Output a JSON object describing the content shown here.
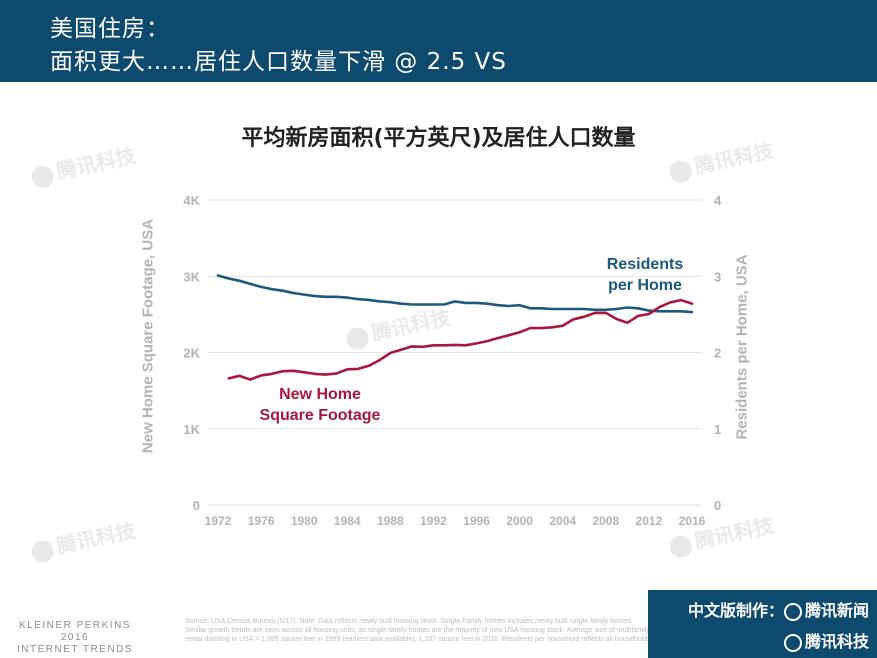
{
  "header": {
    "line1": "美国住房：",
    "line2": "面积更大……居住人口数量下滑 @ 2.5 VS"
  },
  "chart_data": {
    "type": "line",
    "title": "平均新房面积(平方英尺)及居住人口数量",
    "x_ticks": [
      "1972",
      "1976",
      "1980",
      "1984",
      "1988",
      "1992",
      "1996",
      "2000",
      "2004",
      "2008",
      "2012",
      "2016"
    ],
    "xlim": [
      1972,
      2016
    ],
    "left_axis": {
      "label": "New Home Square Footage, USA",
      "ticks": [
        "0",
        "1K",
        "2K",
        "3K",
        "4K"
      ],
      "ylim": [
        0,
        4000
      ]
    },
    "right_axis": {
      "label": "Residents per Home, USA",
      "ticks": [
        "0",
        "1",
        "2",
        "3",
        "4"
      ],
      "ylim": [
        0,
        4
      ]
    },
    "grid": "horizontal",
    "series": [
      {
        "name": "Residents per Home",
        "axis": "right",
        "color": "#1b5a7c",
        "x": [
          1972,
          1973,
          1974,
          1975,
          1976,
          1977,
          1978,
          1979,
          1980,
          1981,
          1982,
          1983,
          1984,
          1985,
          1986,
          1987,
          1988,
          1989,
          1990,
          1991,
          1992,
          1993,
          1994,
          1995,
          1996,
          1997,
          1998,
          1999,
          2000,
          2001,
          2002,
          2003,
          2004,
          2005,
          2006,
          2007,
          2008,
          2009,
          2010,
          2011,
          2012,
          2013,
          2014,
          2015,
          2016
        ],
        "values": [
          3.01,
          2.97,
          2.94,
          2.9,
          2.86,
          2.83,
          2.81,
          2.78,
          2.76,
          2.74,
          2.73,
          2.73,
          2.72,
          2.7,
          2.69,
          2.67,
          2.66,
          2.64,
          2.63,
          2.63,
          2.63,
          2.63,
          2.67,
          2.65,
          2.65,
          2.64,
          2.62,
          2.61,
          2.62,
          2.58,
          2.58,
          2.57,
          2.57,
          2.57,
          2.57,
          2.56,
          2.56,
          2.57,
          2.59,
          2.58,
          2.55,
          2.54,
          2.54,
          2.54,
          2.53
        ]
      },
      {
        "name": "New Home Square Footage",
        "axis": "left",
        "color": "#a8183c",
        "x": [
          1973,
          1974,
          1975,
          1976,
          1977,
          1978,
          1979,
          1980,
          1981,
          1982,
          1983,
          1984,
          1985,
          1986,
          1987,
          1988,
          1989,
          1990,
          1991,
          1992,
          1993,
          1994,
          1995,
          1996,
          1997,
          1998,
          1999,
          2000,
          2001,
          2002,
          2003,
          2004,
          2005,
          2006,
          2007,
          2008,
          2009,
          2010,
          2011,
          2012,
          2013,
          2014,
          2015,
          2016
        ],
        "values": [
          1660,
          1695,
          1645,
          1700,
          1720,
          1755,
          1760,
          1740,
          1720,
          1710,
          1725,
          1780,
          1785,
          1825,
          1900,
          1995,
          2035,
          2080,
          2075,
          2095,
          2095,
          2100,
          2095,
          2120,
          2150,
          2190,
          2225,
          2265,
          2320,
          2320,
          2330,
          2350,
          2435,
          2470,
          2520,
          2520,
          2440,
          2390,
          2480,
          2505,
          2598,
          2658,
          2687,
          2640
        ]
      }
    ]
  },
  "series_labels": {
    "residents_line1": "Residents",
    "residents_line2": "per Home",
    "sqft_line1": "New Home",
    "sqft_line2": "Square Footage"
  },
  "watermark": "腾讯科技",
  "footer": {
    "brand_line1": "KLEINER PERKINS",
    "brand_line2": "2016",
    "brand_line3": "INTERNET TRENDS",
    "source": "Source: USA Census Bureau (5/17). Note: Data reflects newly built housing stock. Single Family homes includes newly built single family homes. Similar growth trends are seen across all housing units, as single-family homes are the majority of new USA housing stock. Average size of multifamily rental dwelling in USA = 1,095 square feet in 1999 (earliest data available), 1,207 square feet in 2016. Residents per household reflects all households.",
    "badge_line1": "中文版制作：",
    "badge_brand1": "腾讯新闻",
    "badge_brand2": "腾讯科技"
  }
}
